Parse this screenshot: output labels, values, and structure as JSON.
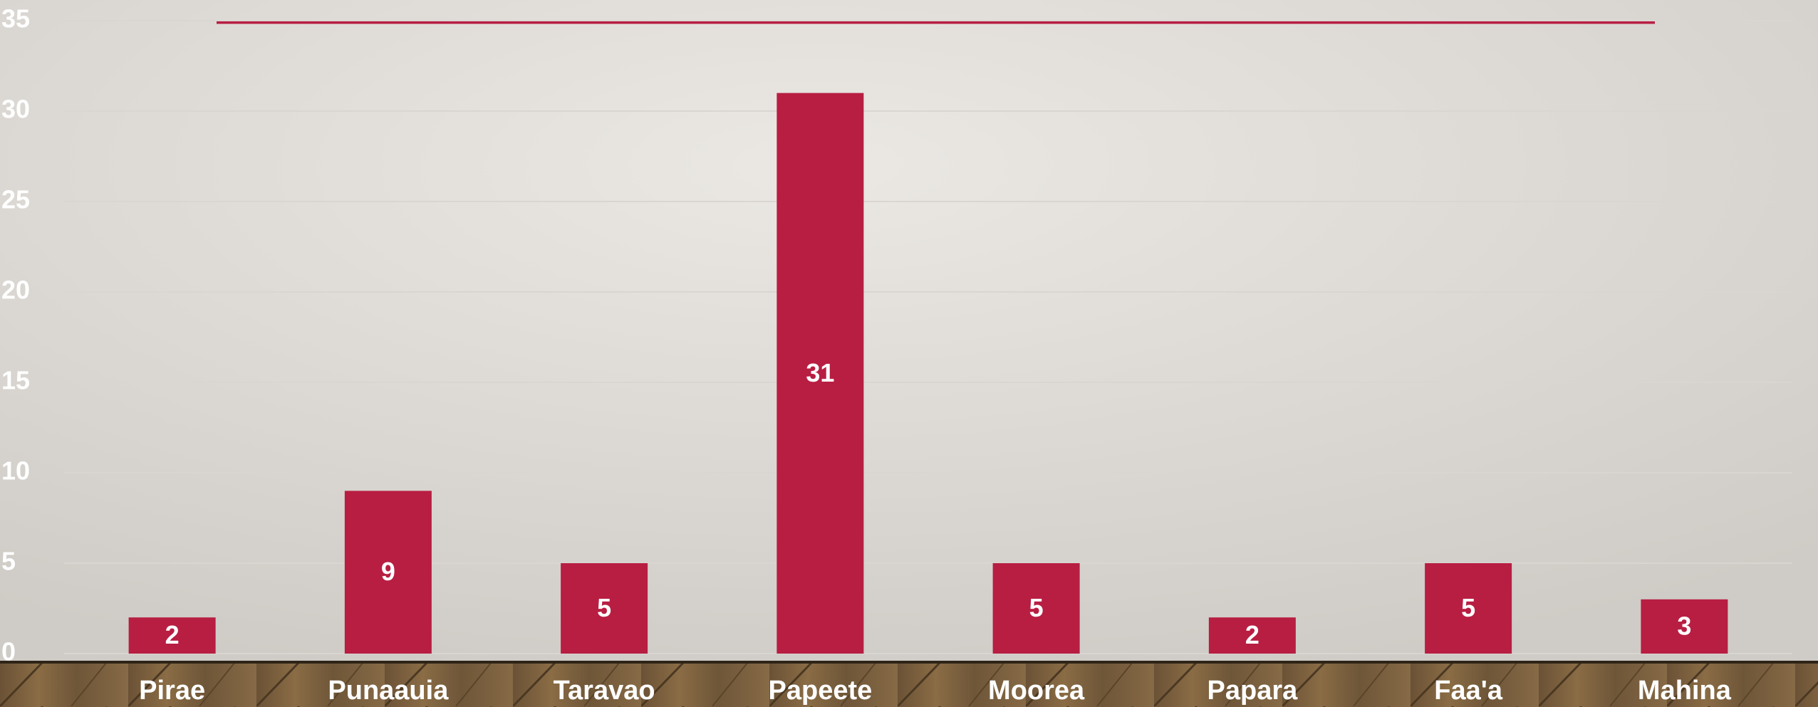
{
  "chart_data": {
    "type": "bar",
    "categories": [
      "Pirae",
      "Punaauia",
      "Taravao",
      "Papeete",
      "Moorea",
      "Papara",
      "Faa'a",
      "Mahina"
    ],
    "values": [
      2,
      9,
      5,
      31,
      5,
      2,
      5,
      3
    ],
    "color": "#b81e42",
    "ylim": [
      0,
      35
    ],
    "yticks": [
      0,
      5,
      10,
      15,
      20,
      25,
      30,
      35
    ],
    "grid": true
  }
}
